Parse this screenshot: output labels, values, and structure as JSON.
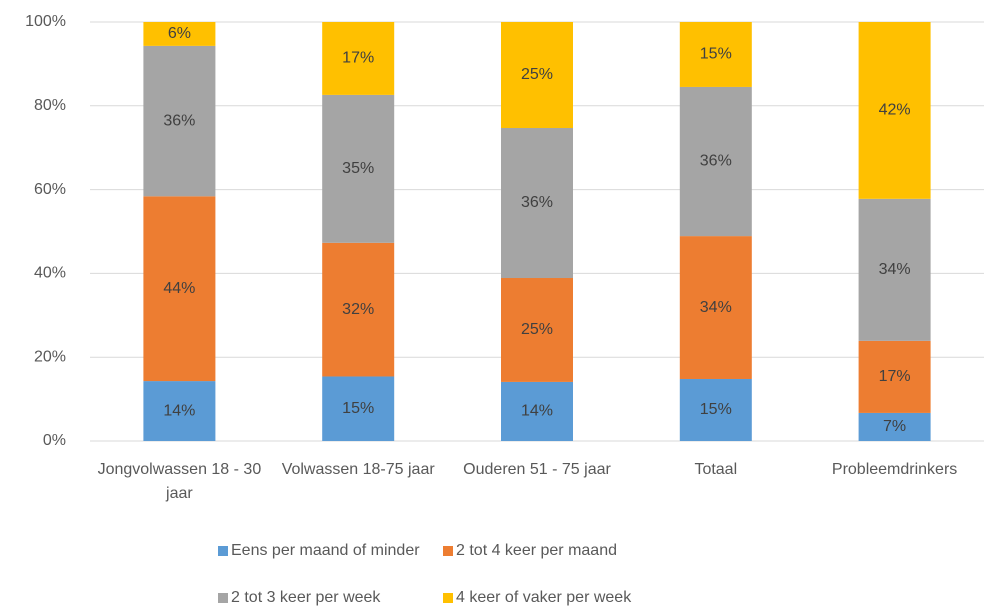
{
  "chart_data": {
    "type": "stacked_bar",
    "categories": [
      "Jongvolwassen 18 - 30 jaar",
      "Volwassen 18-75 jaar",
      "Ouderen 51 - 75 jaar",
      "Totaal",
      "Probleemdrinkers"
    ],
    "series": [
      {
        "name": "Eens per maand of minder",
        "color": "#5b9bd5",
        "values": [
          14.3,
          15.4,
          14.1,
          14.8,
          6.7
        ],
        "value_labels": [
          "14%",
          "15%",
          "14%",
          "15%",
          "7%"
        ]
      },
      {
        "name": "2 tot 4 keer per maand",
        "color": "#ed7d31",
        "values": [
          44.1,
          31.9,
          24.8,
          34.1,
          17.2
        ],
        "value_labels": [
          "44%",
          "32%",
          "25%",
          "34%",
          "17%"
        ]
      },
      {
        "name": "2 tot 3 keer per week",
        "color": "#a5a5a5",
        "values": [
          35.9,
          35.3,
          35.8,
          35.6,
          33.9
        ],
        "value_labels": [
          "36%",
          "35%",
          "36%",
          "36%",
          "34%"
        ]
      },
      {
        "name": "4 keer of vaker per week",
        "color": "#ffc000",
        "values": [
          5.7,
          17.4,
          25.3,
          15.5,
          42.2
        ],
        "value_labels": [
          "6%",
          "17%",
          "25%",
          "15%",
          "42%"
        ]
      }
    ],
    "ylim": [
      0,
      100
    ],
    "yticks": [
      {
        "value": 0,
        "label": "0%"
      },
      {
        "value": 20,
        "label": "20%"
      },
      {
        "value": 40,
        "label": "40%"
      },
      {
        "value": 60,
        "label": "60%"
      },
      {
        "value": 80,
        "label": "80%"
      },
      {
        "value": 100,
        "label": "100%"
      }
    ],
    "grid": true,
    "legend": "bottom"
  }
}
